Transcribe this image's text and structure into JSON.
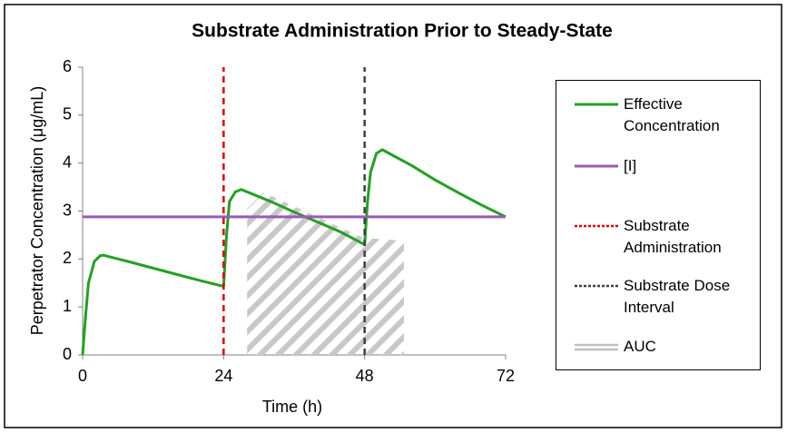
{
  "chart_data": {
    "type": "line",
    "title": "Substrate Administration Prior to Steady-State",
    "x_label": "Time (h)",
    "y_label": "Perpetrator Concentration (μg/mL)",
    "xlim": [
      0,
      72
    ],
    "xticks": [
      0,
      24,
      48,
      72
    ],
    "ylim": [
      0,
      6
    ],
    "yticks": [
      0,
      1,
      2,
      3,
      4,
      5,
      6
    ],
    "series": [
      {
        "name": "Effective Concentration",
        "color": "#22a022",
        "style": "solid",
        "x": [
          0,
          0.5,
          1,
          2,
          3,
          3.5,
          8,
          12,
          16,
          20,
          24,
          24.5,
          25,
          26,
          27,
          32,
          36,
          40,
          44,
          48,
          48.5,
          49,
          50,
          51,
          56,
          60,
          64,
          68,
          72
        ],
        "values": [
          0,
          0.8,
          1.5,
          1.95,
          2.07,
          2.08,
          1.94,
          1.81,
          1.68,
          1.55,
          1.43,
          2.5,
          3.2,
          3.4,
          3.45,
          3.2,
          2.98,
          2.77,
          2.56,
          2.3,
          3.2,
          3.8,
          4.2,
          4.28,
          3.95,
          3.65,
          3.38,
          3.12,
          2.88
        ]
      },
      {
        "name": "[I]",
        "color": "#9b59b6",
        "style": "solid",
        "x": [
          0,
          72
        ],
        "values": [
          2.88,
          2.88
        ]
      },
      {
        "name": "Substrate Administration",
        "color": "#e00000",
        "style": "dashed",
        "x": [
          24,
          24
        ],
        "values": [
          0,
          6
        ]
      },
      {
        "name": "Substrate Dose Interval",
        "color": "#404040",
        "style": "dashed",
        "x": [
          48,
          48
        ],
        "values": [
          0,
          6
        ]
      },
      {
        "name": "AUC",
        "color": "#bfbfbf",
        "style": "hatched-area",
        "x": [
          28,
          30.8,
          47.8,
          54.7
        ],
        "values": [
          3.05,
          3.39,
          2.44,
          2.38
        ]
      }
    ]
  }
}
